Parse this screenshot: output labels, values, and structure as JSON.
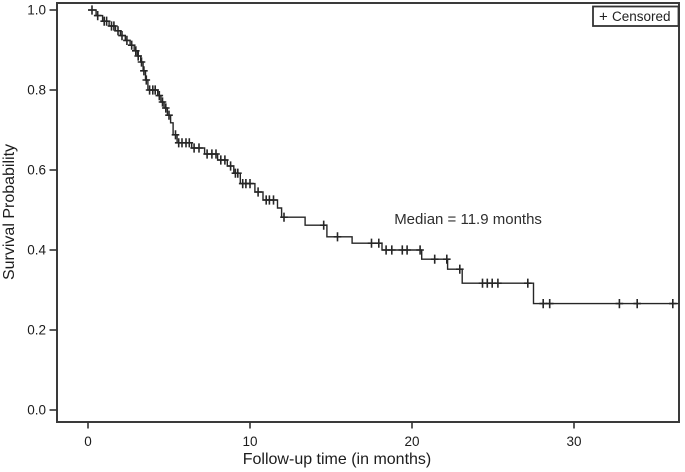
{
  "chart_data": {
    "type": "line",
    "subtype": "kaplan_meier_step_curve",
    "title": "",
    "xlabel": "Follow-up time (in months)",
    "ylabel": "Survival Probability",
    "xlim": [
      -1.9,
      36.5
    ],
    "ylim": [
      -0.03,
      1.02
    ],
    "grid": false,
    "xticks": {
      "values": [
        0,
        10,
        20,
        30
      ],
      "labels": [
        "0",
        "10",
        "20",
        "30"
      ]
    },
    "yticks": {
      "values": [
        0.0,
        0.2,
        0.4,
        0.6,
        0.8,
        1.0
      ],
      "labels": [
        "0.0",
        "0.2",
        "0.4",
        "0.6",
        "0.8",
        "1.0"
      ]
    },
    "legend": {
      "position": "top-right",
      "marker": "+",
      "label": "Censored"
    },
    "annotation": {
      "text": "Median = 11.9 months",
      "t": 18.9,
      "s": 0.465
    },
    "median_months": 11.9,
    "line_color": "#262626",
    "series": [
      {
        "name": "Overall survival",
        "start": [
          0,
          1.0
        ],
        "end_time": 36.45,
        "steps": [
          [
            0.5,
            0.986
          ],
          [
            0.9,
            0.972
          ],
          [
            1.3,
            0.96
          ],
          [
            1.7,
            0.948
          ],
          [
            2.0,
            0.936
          ],
          [
            2.3,
            0.924
          ],
          [
            2.6,
            0.912
          ],
          [
            2.85,
            0.898
          ],
          [
            3.05,
            0.885
          ],
          [
            3.25,
            0.87
          ],
          [
            3.4,
            0.848
          ],
          [
            3.55,
            0.825
          ],
          [
            3.7,
            0.8
          ],
          [
            4.3,
            0.786
          ],
          [
            4.5,
            0.77
          ],
          [
            4.7,
            0.755
          ],
          [
            4.9,
            0.737
          ],
          [
            5.1,
            0.718
          ],
          [
            5.25,
            0.688
          ],
          [
            5.5,
            0.668
          ],
          [
            6.4,
            0.655
          ],
          [
            7.2,
            0.64
          ],
          [
            8.0,
            0.625
          ],
          [
            8.6,
            0.61
          ],
          [
            9.0,
            0.592
          ],
          [
            9.4,
            0.566
          ],
          [
            10.3,
            0.545
          ],
          [
            10.8,
            0.525
          ],
          [
            11.7,
            0.505
          ],
          [
            11.95,
            0.482
          ],
          [
            13.4,
            0.462
          ],
          [
            14.75,
            0.433
          ],
          [
            16.3,
            0.417
          ],
          [
            18.15,
            0.4
          ],
          [
            20.6,
            0.377
          ],
          [
            22.2,
            0.352
          ],
          [
            23.1,
            0.317
          ],
          [
            27.5,
            0.266
          ]
        ]
      }
    ],
    "censored": [
      [
        0.25,
        1.0
      ],
      [
        0.6,
        0.986
      ],
      [
        1.0,
        0.972
      ],
      [
        1.15,
        0.972
      ],
      [
        1.45,
        0.96
      ],
      [
        1.6,
        0.96
      ],
      [
        1.85,
        0.948
      ],
      [
        2.1,
        0.936
      ],
      [
        2.4,
        0.924
      ],
      [
        2.7,
        0.912
      ],
      [
        2.95,
        0.898
      ],
      [
        3.1,
        0.885
      ],
      [
        3.3,
        0.87
      ],
      [
        3.45,
        0.848
      ],
      [
        3.6,
        0.825
      ],
      [
        3.8,
        0.8
      ],
      [
        4.0,
        0.8
      ],
      [
        4.15,
        0.8
      ],
      [
        4.4,
        0.786
      ],
      [
        4.6,
        0.77
      ],
      [
        4.8,
        0.755
      ],
      [
        5.0,
        0.737
      ],
      [
        5.4,
        0.688
      ],
      [
        5.6,
        0.668
      ],
      [
        5.8,
        0.668
      ],
      [
        6.05,
        0.668
      ],
      [
        6.25,
        0.668
      ],
      [
        6.55,
        0.655
      ],
      [
        6.85,
        0.655
      ],
      [
        7.35,
        0.64
      ],
      [
        7.65,
        0.64
      ],
      [
        7.9,
        0.64
      ],
      [
        8.2,
        0.625
      ],
      [
        8.45,
        0.625
      ],
      [
        8.8,
        0.61
      ],
      [
        9.1,
        0.592
      ],
      [
        9.25,
        0.592
      ],
      [
        9.55,
        0.566
      ],
      [
        9.75,
        0.566
      ],
      [
        10.0,
        0.566
      ],
      [
        10.5,
        0.545
      ],
      [
        11.0,
        0.525
      ],
      [
        11.2,
        0.525
      ],
      [
        11.45,
        0.525
      ],
      [
        12.1,
        0.482
      ],
      [
        14.55,
        0.462
      ],
      [
        15.4,
        0.433
      ],
      [
        17.5,
        0.417
      ],
      [
        17.95,
        0.417
      ],
      [
        18.4,
        0.4
      ],
      [
        18.75,
        0.4
      ],
      [
        19.4,
        0.4
      ],
      [
        19.7,
        0.4
      ],
      [
        20.5,
        0.4
      ],
      [
        21.4,
        0.377
      ],
      [
        22.15,
        0.377
      ],
      [
        22.95,
        0.352
      ],
      [
        24.35,
        0.317
      ],
      [
        24.65,
        0.317
      ],
      [
        24.95,
        0.317
      ],
      [
        25.3,
        0.317
      ],
      [
        27.15,
        0.317
      ],
      [
        28.1,
        0.266
      ],
      [
        28.5,
        0.266
      ],
      [
        32.8,
        0.266
      ],
      [
        33.9,
        0.266
      ],
      [
        36.1,
        0.266
      ]
    ]
  }
}
